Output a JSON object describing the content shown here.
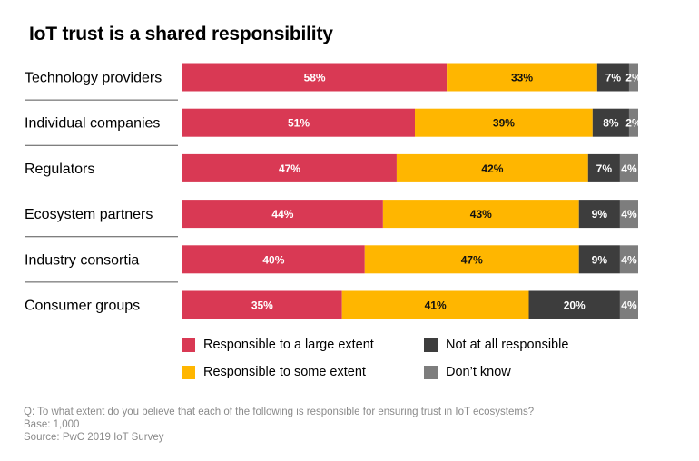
{
  "title": "IoT trust is a shared responsibility",
  "colors": {
    "large": "#d93954",
    "some": "#ffb600",
    "not_at_all": "#3d3d3d",
    "dont_know": "#7d7d7d",
    "divider": "#555555",
    "bar_text_light": "#ffffff",
    "bar_text_dark": "#111111"
  },
  "legend": {
    "items": [
      {
        "label": "Responsible to a large extent",
        "color": "#d93954"
      },
      {
        "label": "Not at all responsible",
        "color": "#3d3d3d"
      },
      {
        "label": "Responsible to some extent",
        "color": "#ffb600"
      },
      {
        "label": "Don’t know",
        "color": "#7d7d7d"
      }
    ]
  },
  "chart_data": {
    "type": "bar",
    "orientation": "horizontal",
    "stacked": true,
    "title": "IoT trust is a shared responsibility",
    "categories": [
      "Technology providers",
      "Individual companies",
      "Regulators",
      "Ecosystem partners",
      "Industry consortia",
      "Consumer groups"
    ],
    "series": [
      {
        "name": "Responsible to a large extent",
        "values": [
          58,
          51,
          47,
          44,
          40,
          35
        ],
        "labels": [
          "58%",
          "51%",
          "47%",
          "44%",
          "40%",
          "35%"
        ]
      },
      {
        "name": "Responsible to some extent",
        "values": [
          33,
          39,
          42,
          43,
          47,
          41
        ],
        "labels": [
          "33%",
          "39%",
          "42%",
          "43%",
          "47%",
          "41%"
        ]
      },
      {
        "name": "Not at all responsible",
        "values": [
          7,
          8,
          7,
          9,
          9,
          20
        ],
        "labels": [
          "7%",
          "8%",
          "7%",
          "9%",
          "9%",
          "20%"
        ]
      },
      {
        "name": "Don’t know",
        "values": [
          2,
          2,
          4,
          4,
          4,
          4
        ],
        "labels": [
          "2%",
          "2%",
          "4%",
          "4%",
          "4%",
          "4%"
        ]
      }
    ],
    "xlim": [
      0,
      100
    ],
    "grid": false,
    "legend_position": "bottom"
  },
  "footnote": {
    "question": "Q: To what extent do you believe that each of the following is responsible for ensuring trust in IoT ecosystems?",
    "base": "Base: 1,000",
    "source": "Source: PwC 2019 IoT Survey"
  }
}
